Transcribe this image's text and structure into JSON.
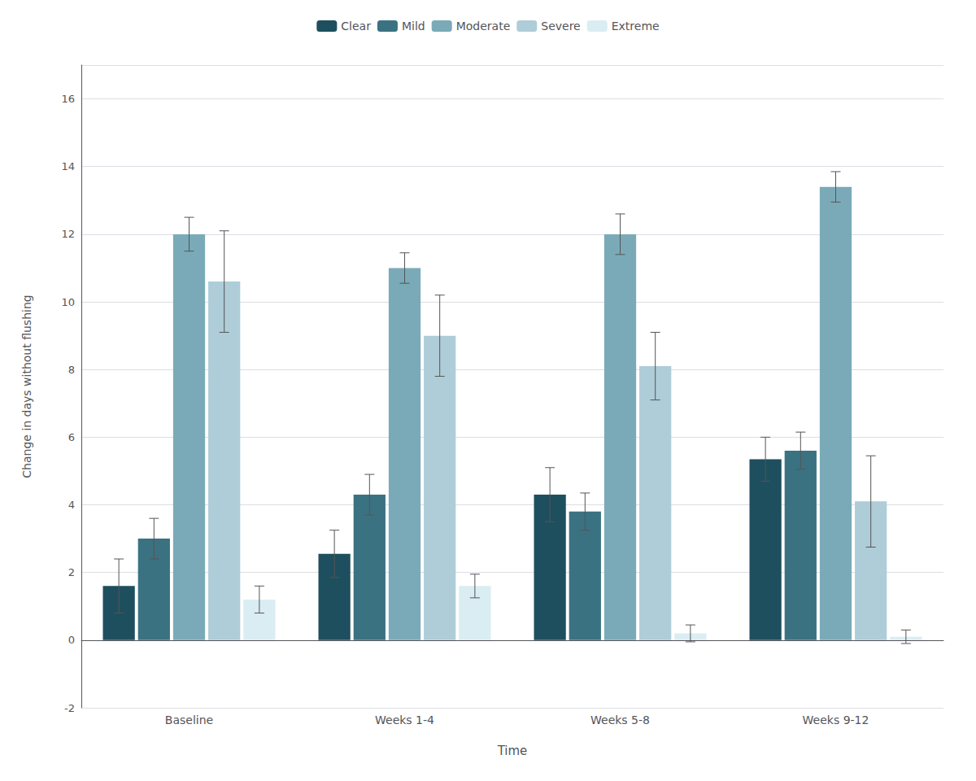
{
  "chart_data": {
    "type": "bar",
    "categories": [
      "Baseline",
      "Weeks 1-4",
      "Weeks 5-8",
      "Weeks 9-12"
    ],
    "series": [
      {
        "name": "Clear",
        "color": "#1e4f5e",
        "values": [
          1.6,
          2.55,
          4.3,
          5.35
        ],
        "errors": [
          0.8,
          0.7,
          0.8,
          0.65
        ]
      },
      {
        "name": "Mild",
        "color": "#3b7282",
        "values": [
          3.0,
          4.3,
          3.8,
          5.6
        ],
        "errors": [
          0.6,
          0.6,
          0.55,
          0.55
        ]
      },
      {
        "name": "Moderate",
        "color": "#7aaab8",
        "values": [
          12.0,
          11.0,
          12.0,
          13.4
        ],
        "errors": [
          0.5,
          0.45,
          0.6,
          0.45
        ]
      },
      {
        "name": "Severe",
        "color": "#aecdd8",
        "values": [
          10.6,
          9.0,
          8.1,
          4.1
        ],
        "errors": [
          1.5,
          1.2,
          1.0,
          1.35
        ]
      },
      {
        "name": "Extreme",
        "color": "#daedf3",
        "values": [
          1.2,
          1.6,
          0.2,
          0.1
        ],
        "errors": [
          0.4,
          0.35,
          0.25,
          0.2
        ]
      }
    ],
    "xlabel": "Time",
    "ylabel": "Change in days without flushing",
    "ylim": [
      -2,
      17
    ],
    "yticks": [
      -2,
      0,
      2,
      4,
      6,
      8,
      10,
      12,
      14,
      16
    ],
    "grid": true,
    "legend": "top"
  }
}
